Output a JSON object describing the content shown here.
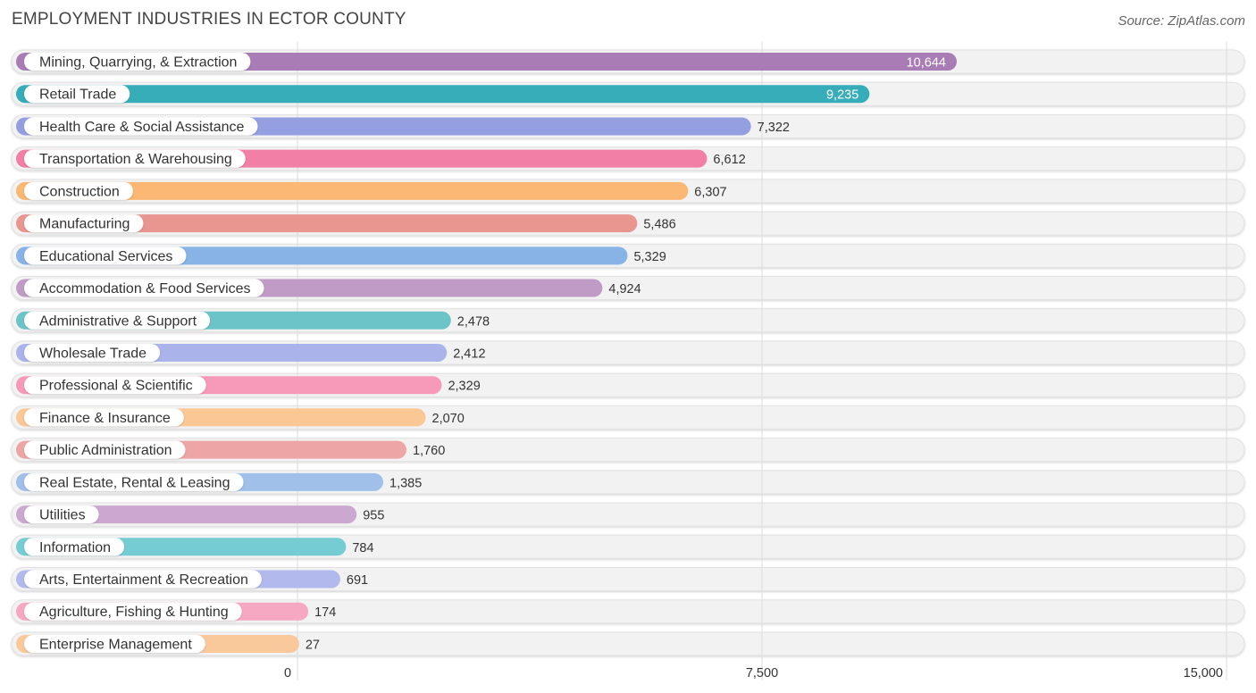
{
  "header": {
    "title": "EMPLOYMENT INDUSTRIES IN ECTOR COUNTY",
    "source": "Source: ZipAtlas.com"
  },
  "chart_data": {
    "type": "bar",
    "orientation": "horizontal",
    "categories": [
      "Mining, Quarrying, & Extraction",
      "Retail Trade",
      "Health Care & Social Assistance",
      "Transportation & Warehousing",
      "Construction",
      "Manufacturing",
      "Educational Services",
      "Accommodation & Food Services",
      "Administrative & Support",
      "Wholesale Trade",
      "Professional & Scientific",
      "Finance & Insurance",
      "Public Administration",
      "Real Estate, Rental & Leasing",
      "Utilities",
      "Information",
      "Arts, Entertainment & Recreation",
      "Agriculture, Fishing & Hunting",
      "Enterprise Management"
    ],
    "values": [
      10644,
      9235,
      7322,
      6612,
      6307,
      5486,
      5329,
      4924,
      2478,
      2412,
      2329,
      2070,
      1760,
      1385,
      955,
      784,
      691,
      174,
      27
    ],
    "value_labels": [
      "10,644",
      "9,235",
      "7,322",
      "6,612",
      "6,307",
      "5,486",
      "5,329",
      "4,924",
      "2,478",
      "2,412",
      "2,329",
      "2,070",
      "1,760",
      "1,385",
      "955",
      "784",
      "691",
      "174",
      "27"
    ],
    "colors": [
      "#a97cb6",
      "#36adb9",
      "#949fe1",
      "#f27fa6",
      "#fab874",
      "#e99590",
      "#88b3e6",
      "#c09bc6",
      "#6cc4c9",
      "#aab3ea",
      "#f799b8",
      "#fac795",
      "#eda6a5",
      "#a0c0ea",
      "#cca8d1",
      "#76ccd3",
      "#b2b9ec",
      "#f6a8c3",
      "#f9c99c"
    ],
    "xlim": [
      0,
      15000
    ],
    "xticks": [
      0,
      7500,
      15000
    ],
    "xtick_labels": [
      "0",
      "7,500",
      "15,000"
    ],
    "grid": true
  }
}
